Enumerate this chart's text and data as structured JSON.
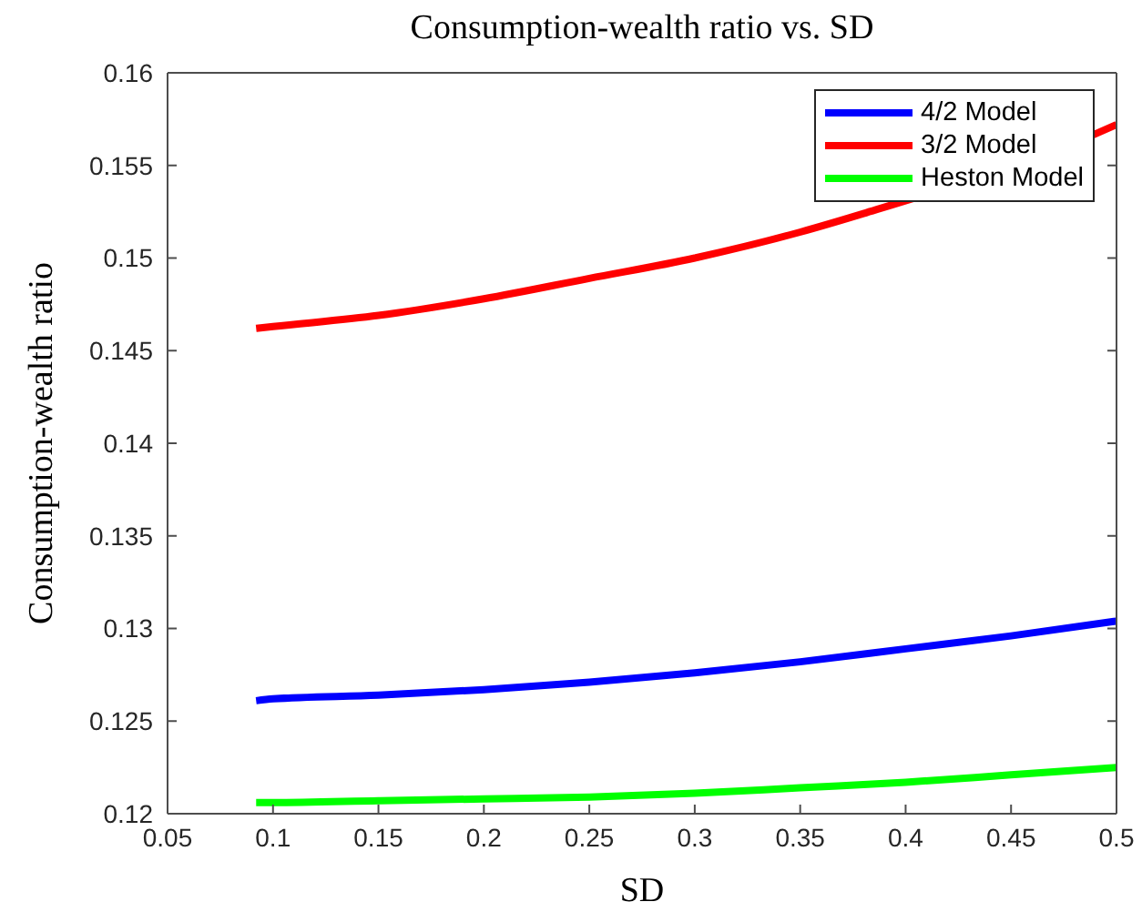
{
  "chart_data": {
    "type": "line",
    "title": "Consumption-wealth ratio vs. SD",
    "xlabel": "SD",
    "ylabel": "Consumption-wealth ratio",
    "x": [
      0.092,
      0.1,
      0.15,
      0.2,
      0.25,
      0.3,
      0.35,
      0.4,
      0.45,
      0.5
    ],
    "series": [
      {
        "name": "4/2 Model",
        "color": "#0000ff",
        "values": [
          0.1261,
          0.1262,
          0.1264,
          0.1267,
          0.1271,
          0.1276,
          0.1282,
          0.1289,
          0.1296,
          0.1304
        ]
      },
      {
        "name": "3/2 Model",
        "color": "#ff0000",
        "x": [
          0.092,
          0.1,
          0.15,
          0.2,
          0.25,
          0.3,
          0.35,
          0.38,
          0.49,
          0.5
        ],
        "values": [
          0.1462,
          0.1463,
          0.1469,
          0.1478,
          0.1489,
          0.15,
          0.1514,
          0.1524,
          0.1567,
          0.1572
        ]
      },
      {
        "name": "Heston Model",
        "color": "#00ff00",
        "values": [
          0.1206,
          0.1206,
          0.1207,
          0.1208,
          0.1209,
          0.1211,
          0.1214,
          0.1217,
          0.1221,
          0.1225
        ]
      }
    ],
    "xlim": [
      0.05,
      0.5
    ],
    "xticks": [
      0.05,
      0.1,
      0.15,
      0.2,
      0.25,
      0.3,
      0.35,
      0.4,
      0.45,
      0.5
    ],
    "ylim": [
      0.12,
      0.16
    ],
    "yticks": [
      0.12,
      0.125,
      0.13,
      0.135,
      0.14,
      0.145,
      0.15,
      0.155,
      0.16
    ],
    "legend": "top right"
  }
}
